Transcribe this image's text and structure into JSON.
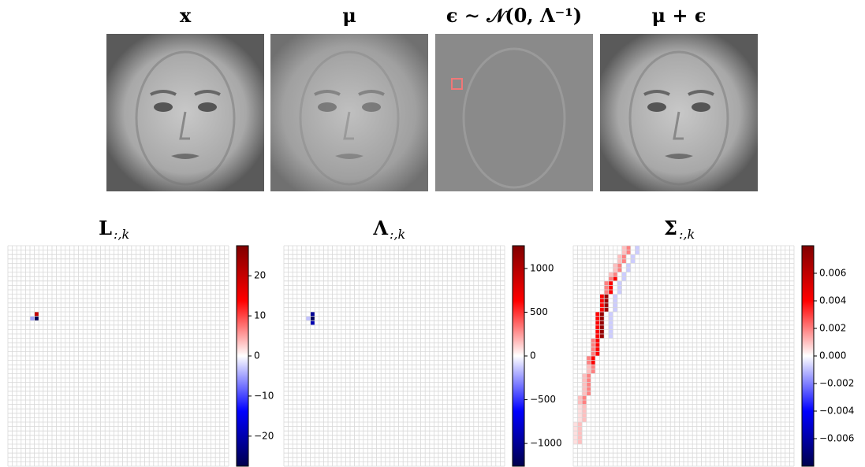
{
  "images": [
    {
      "title": "x"
    },
    {
      "title": "μ"
    },
    {
      "title": "ϵ ∼ 𝒩(0, Λ⁻¹)"
    },
    {
      "title": "μ + ϵ"
    }
  ],
  "chart_data": [
    {
      "type": "heatmap",
      "title": "L",
      "title_sub": ":,k",
      "colormap": "seismic",
      "rows": 50,
      "cols": 50,
      "clim": [
        -27.5,
        27.5
      ],
      "cticks": [
        {
          "value": -20,
          "label": "−20"
        },
        {
          "value": -10,
          "label": "−10"
        },
        0,
        10,
        20
      ],
      "cells": [
        [
          15,
          6,
          20
        ],
        [
          16,
          6,
          -27
        ],
        [
          16,
          5,
          -5
        ]
      ]
    },
    {
      "type": "heatmap",
      "title": "Λ",
      "title_sub": ":,k",
      "colormap": "seismic",
      "rows": 50,
      "cols": 50,
      "clim": [
        -1260,
        1260
      ],
      "cticks": [
        {
          "value": -1000,
          "label": "−1000"
        },
        {
          "value": -500,
          "label": "−500"
        },
        0,
        500,
        1000
      ],
      "cells": [
        [
          15,
          6,
          -1000
        ],
        [
          16,
          6,
          -1200
        ],
        [
          17,
          6,
          -900
        ],
        [
          16,
          5,
          -150
        ]
      ]
    },
    {
      "type": "heatmap",
      "title": "Σ",
      "title_sub": ":,k",
      "colormap": "seismic",
      "rows": 50,
      "cols": 50,
      "clim": [
        -0.008,
        0.008
      ],
      "cticks": [
        {
          "value": -0.006,
          "label": "−0.006"
        },
        {
          "value": -0.004,
          "label": "−0.004"
        },
        {
          "value": -0.002,
          "label": "−0.002"
        },
        {
          "value": 0,
          "label": "0.000"
        },
        0.002,
        0.004,
        0.006
      ],
      "cells": [
        [
          0,
          12,
          0.002
        ],
        [
          0,
          11,
          0.001
        ],
        [
          0,
          14,
          -0.0008
        ],
        [
          1,
          12,
          0.002
        ],
        [
          1,
          11,
          0.001
        ],
        [
          1,
          14,
          -0.0008
        ],
        [
          2,
          11,
          0.002
        ],
        [
          2,
          10,
          0.001
        ],
        [
          2,
          13,
          -0.0008
        ],
        [
          3,
          11,
          0.002
        ],
        [
          3,
          10,
          0.001
        ],
        [
          3,
          13,
          -0.0008
        ],
        [
          4,
          10,
          0.002
        ],
        [
          4,
          9,
          0.001
        ],
        [
          4,
          12,
          -0.0008
        ],
        [
          5,
          10,
          0.002
        ],
        [
          5,
          9,
          0.001
        ],
        [
          5,
          12,
          -0.0008
        ],
        [
          6,
          9,
          0.002
        ],
        [
          6,
          8,
          0.001
        ],
        [
          6,
          11,
          -0.0008
        ],
        [
          7,
          9,
          0.004
        ],
        [
          7,
          8,
          0.002
        ],
        [
          7,
          11,
          -0.0008
        ],
        [
          8,
          8,
          0.004
        ],
        [
          8,
          7,
          0.002
        ],
        [
          8,
          10,
          -0.0008
        ],
        [
          9,
          8,
          0.004
        ],
        [
          9,
          7,
          0.002
        ],
        [
          9,
          10,
          -0.0008
        ],
        [
          10,
          8,
          0.004
        ],
        [
          10,
          7,
          0.002
        ],
        [
          10,
          10,
          -0.0008
        ],
        [
          11,
          7,
          0.0072
        ],
        [
          11,
          6,
          0.004
        ],
        [
          11,
          9,
          -0.0008
        ],
        [
          12,
          7,
          0.0072
        ],
        [
          12,
          6,
          0.004
        ],
        [
          12,
          9,
          -0.0008
        ],
        [
          13,
          7,
          0.0072
        ],
        [
          13,
          6,
          0.004
        ],
        [
          13,
          9,
          -0.0008
        ],
        [
          14,
          7,
          0.0072
        ],
        [
          14,
          6,
          0.004
        ],
        [
          14,
          9,
          -0.0008
        ],
        [
          15,
          6,
          0.0072
        ],
        [
          15,
          5,
          0.004
        ],
        [
          15,
          8,
          -0.0008
        ],
        [
          16,
          6,
          0.0072
        ],
        [
          16,
          5,
          0.004
        ],
        [
          16,
          8,
          -0.0008
        ],
        [
          17,
          6,
          0.0072
        ],
        [
          17,
          5,
          0.004
        ],
        [
          17,
          8,
          -0.0008
        ],
        [
          18,
          6,
          0.0072
        ],
        [
          18,
          5,
          0.004
        ],
        [
          18,
          8,
          -0.0008
        ],
        [
          19,
          6,
          0.0072
        ],
        [
          19,
          5,
          0.004
        ],
        [
          19,
          8,
          -0.0008
        ],
        [
          20,
          6,
          0.0072
        ],
        [
          20,
          5,
          0.004
        ],
        [
          20,
          8,
          -0.0008
        ],
        [
          21,
          5,
          0.004
        ],
        [
          21,
          4,
          0.002
        ],
        [
          22,
          5,
          0.004
        ],
        [
          22,
          4,
          0.002
        ],
        [
          23,
          5,
          0.004
        ],
        [
          23,
          4,
          0.002
        ],
        [
          24,
          5,
          0.004
        ],
        [
          24,
          4,
          0.002
        ],
        [
          25,
          4,
          0.004
        ],
        [
          25,
          3,
          0.002
        ],
        [
          26,
          4,
          0.004
        ],
        [
          26,
          3,
          0.002
        ],
        [
          27,
          4,
          0.002
        ],
        [
          27,
          3,
          0.001
        ],
        [
          28,
          4,
          0.002
        ],
        [
          28,
          3,
          0.001
        ],
        [
          29,
          3,
          0.002
        ],
        [
          29,
          2,
          0.001
        ],
        [
          30,
          3,
          0.002
        ],
        [
          30,
          2,
          0.001
        ],
        [
          31,
          3,
          0.002
        ],
        [
          31,
          2,
          0.001
        ],
        [
          32,
          3,
          0.002
        ],
        [
          32,
          2,
          0.001
        ],
        [
          33,
          3,
          0.002
        ],
        [
          33,
          2,
          0.001
        ],
        [
          34,
          2,
          0.002
        ],
        [
          34,
          1,
          0.001
        ],
        [
          35,
          2,
          0.002
        ],
        [
          35,
          1,
          0.001
        ],
        [
          36,
          2,
          0.001
        ],
        [
          36,
          1,
          0.0005
        ],
        [
          37,
          2,
          0.001
        ],
        [
          37,
          1,
          0.0005
        ],
        [
          38,
          2,
          0.001
        ],
        [
          38,
          1,
          0.0005
        ],
        [
          39,
          2,
          0.001
        ],
        [
          39,
          1,
          0.0005
        ],
        [
          40,
          1,
          0.001
        ],
        [
          40,
          0,
          0.0005
        ],
        [
          41,
          1,
          0.001
        ],
        [
          41,
          0,
          0.0005
        ],
        [
          42,
          1,
          0.001
        ],
        [
          42,
          0,
          0.0005
        ],
        [
          43,
          1,
          0.001
        ],
        [
          43,
          0,
          0.0005
        ],
        [
          44,
          1,
          0.001
        ],
        [
          44,
          0,
          0.0005
        ]
      ]
    }
  ]
}
